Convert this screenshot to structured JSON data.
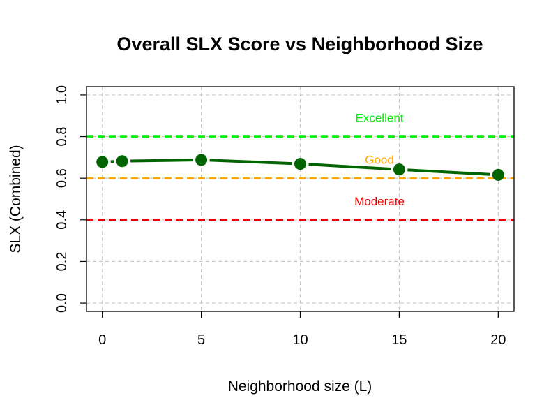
{
  "chart_data": {
    "type": "line",
    "title": "Overall SLX Score vs Neighborhood Size",
    "xlabel": "Neighborhood size (L)",
    "ylabel": "SLX (Combined)",
    "xlim": [
      -0.8,
      20.8
    ],
    "ylim": [
      -0.04,
      1.04
    ],
    "x_ticks": [
      "0",
      "5",
      "10",
      "15",
      "20"
    ],
    "y_ticks": [
      "0.0",
      "0.2",
      "0.4",
      "0.6",
      "0.8",
      "1.0"
    ],
    "grid": true,
    "series": [
      {
        "color": "#006400",
        "points": [
          {
            "x": 0,
            "y": 0.678
          },
          {
            "x": 1,
            "y": 0.682
          },
          {
            "x": 5,
            "y": 0.688
          },
          {
            "x": 10,
            "y": 0.669
          },
          {
            "x": 15,
            "y": 0.642
          },
          {
            "x": 20,
            "y": 0.616
          }
        ]
      }
    ],
    "reference_lines": [
      {
        "y": 0.8,
        "label": "Excellent",
        "color": "#00ee00",
        "label_y": 0.89
      },
      {
        "y": 0.6,
        "label": "Good",
        "color": "#ffa500",
        "label_y": 0.69
      },
      {
        "y": 0.4,
        "label": "Moderate",
        "color": "#ee0000",
        "label_y": 0.49
      }
    ],
    "annotation_x": 14
  }
}
